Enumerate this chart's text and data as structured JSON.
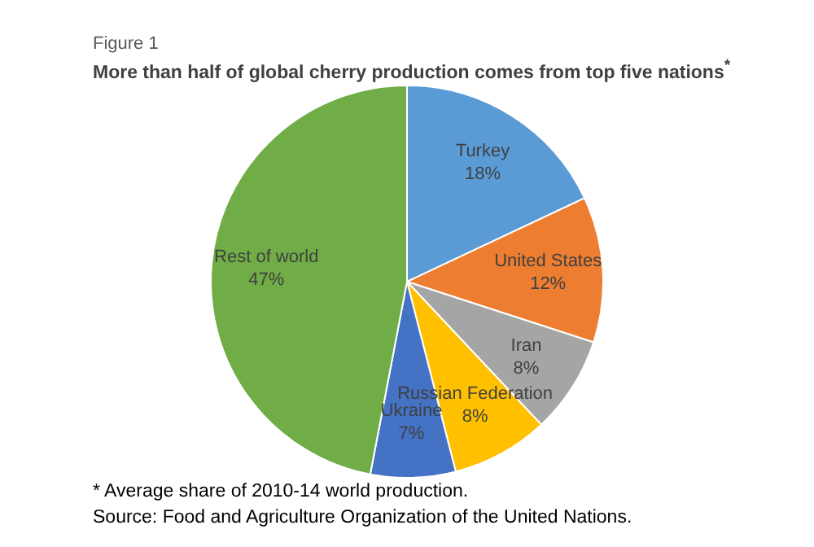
{
  "chart_data": {
    "type": "pie",
    "subtitle": "Figure 1",
    "title": "More than half of global cherry production comes from top five nations$^{*}$",
    "categories": [
      "Turkey",
      "United States",
      "Iran",
      "Russian Federation",
      "Ukraine",
      "Rest of world"
    ],
    "values": [
      18,
      12,
      8,
      8,
      7,
      47
    ],
    "value_labels": [
      "18%",
      "12%",
      "8%",
      "8%",
      "7%",
      "47%"
    ],
    "colors": [
      "#5b9bd5",
      "#ed7d31",
      "#a5a5a5",
      "#ffc000",
      "#4472c4",
      "#70ad47"
    ],
    "legend": false,
    "annotations": [
      "* Average share of 2010-14 world production.",
      "Source: Food and Agriculture Organization of the United Nations."
    ]
  }
}
